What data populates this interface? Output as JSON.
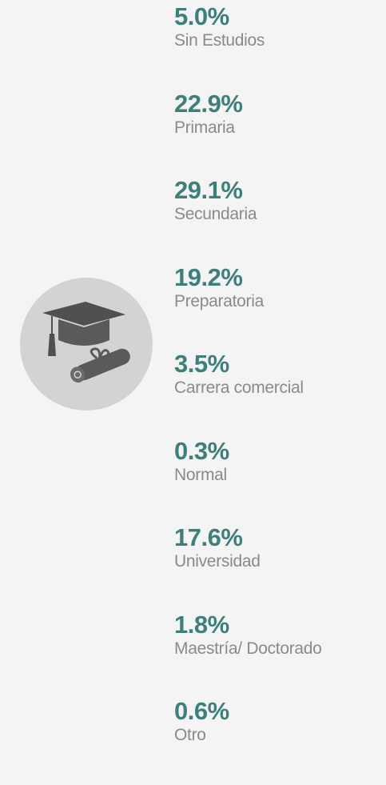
{
  "items": [
    {
      "value": "5.0%",
      "label": "Sin Estudios"
    },
    {
      "value": "22.9%",
      "label": "Primaria"
    },
    {
      "value": "29.1%",
      "label": "Secundaria"
    },
    {
      "value": "19.2%",
      "label": "Preparatoria"
    },
    {
      "value": "3.5%",
      "label": "Carrera comercial"
    },
    {
      "value": "0.3%",
      "label": "Normal"
    },
    {
      "value": "17.6%",
      "label": "Universidad"
    },
    {
      "value": "1.8%",
      "label": "Maestría/ Doctorado"
    },
    {
      "value": "0.6%",
      "label": "Otro"
    }
  ]
}
